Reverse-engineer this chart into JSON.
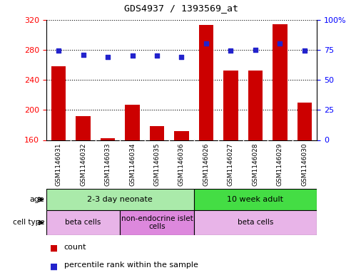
{
  "title": "GDS4937 / 1393569_at",
  "samples": [
    "GSM1146031",
    "GSM1146032",
    "GSM1146033",
    "GSM1146034",
    "GSM1146035",
    "GSM1146036",
    "GSM1146026",
    "GSM1146027",
    "GSM1146028",
    "GSM1146029",
    "GSM1146030"
  ],
  "counts": [
    258,
    192,
    162,
    207,
    178,
    172,
    313,
    252,
    252,
    314,
    210
  ],
  "percentiles": [
    74,
    71,
    69,
    70,
    70,
    69,
    80,
    74,
    75,
    80,
    74
  ],
  "ylim_left": [
    160,
    320
  ],
  "ylim_right": [
    0,
    100
  ],
  "yticks_left": [
    160,
    200,
    240,
    280,
    320
  ],
  "yticks_right": [
    0,
    25,
    50,
    75,
    100
  ],
  "bar_color": "#cc0000",
  "dot_color": "#2222cc",
  "age_groups": [
    {
      "label": "2-3 day neonate",
      "start": 0,
      "end": 6,
      "color": "#aaeaaa"
    },
    {
      "label": "10 week adult",
      "start": 6,
      "end": 11,
      "color": "#44dd44"
    }
  ],
  "cell_type_groups": [
    {
      "label": "beta cells",
      "start": 0,
      "end": 3,
      "color": "#e8b4e8"
    },
    {
      "label": "non-endocrine islet\ncells",
      "start": 3,
      "end": 6,
      "color": "#dd88dd"
    },
    {
      "label": "beta cells",
      "start": 6,
      "end": 11,
      "color": "#e8b4e8"
    }
  ],
  "legend_items": [
    {
      "color": "#cc0000",
      "label": "count"
    },
    {
      "color": "#2222cc",
      "label": "percentile rank within the sample"
    }
  ],
  "sample_bg_color": "#d0d0d0",
  "border_color": "#000000"
}
